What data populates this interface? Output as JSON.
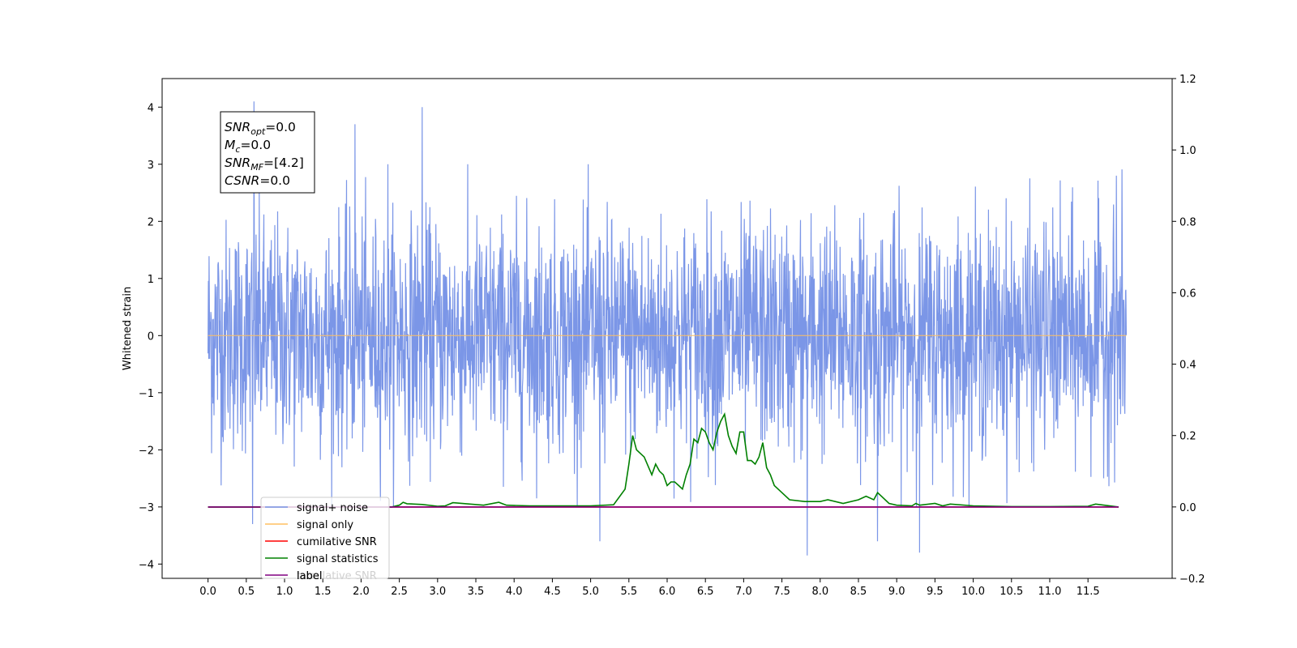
{
  "chart_data": {
    "type": "line",
    "ylabel": "Whitened strain",
    "xlim": [
      -0.6,
      12.6
    ],
    "ylim": [
      -4.25,
      4.5
    ],
    "y2lim": [
      -0.2,
      1.2
    ],
    "x_ticks": [
      0.0,
      0.5,
      1.0,
      1.5,
      2.0,
      2.5,
      3.0,
      3.5,
      4.0,
      4.5,
      5.0,
      5.5,
      6.0,
      6.5,
      7.0,
      7.5,
      8.0,
      8.5,
      9.0,
      9.5,
      10.0,
      10.5,
      11.0,
      11.5
    ],
    "x_tick_labels": [
      "0.0",
      "0.5",
      "1.0",
      "1.5",
      "2.0",
      "2.5",
      "3.0",
      "3.5",
      "4.0",
      "4.5",
      "5.0",
      "5.5",
      "6.0",
      "6.5",
      "7.0",
      "7.5",
      "8.0",
      "8.5",
      "9.0",
      "9.5",
      "10.0",
      "10.5",
      "11.0",
      "11.5"
    ],
    "y_ticks": [
      4,
      3,
      2,
      1,
      0,
      -1,
      -2,
      -3,
      -4
    ],
    "y_tick_labels": [
      "4",
      "3",
      "2",
      "1",
      "0",
      "−1",
      "−2",
      "−3",
      "−4"
    ],
    "y2_ticks": [
      1.2,
      1.0,
      0.8,
      0.6,
      0.4,
      0.2,
      0.0,
      -0.2
    ],
    "y2_tick_labels": [
      "1.2",
      "1.0",
      "0.8",
      "0.6",
      "0.4",
      "0.2",
      "0.0",
      "−0.2"
    ],
    "grid": false,
    "legend_position": "lower-left",
    "annotation": {
      "snr_opt": {
        "main": "SNR",
        "sub": "opt",
        "rest": "=0.0"
      },
      "mc": {
        "main": "M",
        "sub": "c",
        "rest": "=0.0"
      },
      "snr_mf": {
        "main": "SNR",
        "sub": "MF",
        "rest": "=[4.2]"
      },
      "csnr": {
        "main": "CSNR",
        "sub": "",
        "rest": "=0.0"
      }
    },
    "series": [
      {
        "name": "signal+ noise",
        "color": "#7b96e7",
        "axis": "left",
        "description_values": "dense noise between roughly -2.5 and 2.5 with spikes",
        "x_range": [
          0.0,
          12.0
        ],
        "peaks": [
          [
            0.6,
            4.1
          ],
          [
            2.8,
            4.0
          ],
          [
            1.92,
            3.7
          ],
          [
            2.35,
            3.0
          ],
          [
            7.83,
            -3.85
          ],
          [
            9.3,
            -3.8
          ],
          [
            5.12,
            -3.6
          ],
          [
            8.75,
            -3.6
          ],
          [
            0.58,
            -3.3
          ],
          [
            11.87,
            2.8
          ]
        ]
      },
      {
        "name": "signal only",
        "color": "#ffbf60",
        "axis": "left",
        "x": [
          0.0,
          12.0
        ],
        "y": [
          0.0,
          0.0
        ]
      },
      {
        "name": "cumilative SNR",
        "color": "#ff0000",
        "axis": "right",
        "x": [
          0.0,
          11.9
        ],
        "y": [
          0.0,
          0.0
        ]
      },
      {
        "name": "signal statistics",
        "color": "#008000",
        "axis": "right",
        "x": [
          0.0,
          2.4,
          2.5,
          2.55,
          2.6,
          2.8,
          3.0,
          3.1,
          3.2,
          3.6,
          3.8,
          3.9,
          4.2,
          4.5,
          5.0,
          5.3,
          5.45,
          5.5,
          5.55,
          5.6,
          5.65,
          5.7,
          5.8,
          5.85,
          5.9,
          5.95,
          6.0,
          6.05,
          6.1,
          6.15,
          6.2,
          6.25,
          6.3,
          6.35,
          6.4,
          6.45,
          6.5,
          6.55,
          6.6,
          6.65,
          6.7,
          6.75,
          6.8,
          6.85,
          6.9,
          6.95,
          7.0,
          7.05,
          7.1,
          7.15,
          7.2,
          7.25,
          7.3,
          7.35,
          7.4,
          7.5,
          7.6,
          7.8,
          8.0,
          8.1,
          8.3,
          8.5,
          8.6,
          8.7,
          8.75,
          8.8,
          8.9,
          9.0,
          9.2,
          9.25,
          9.3,
          9.5,
          9.6,
          9.7,
          10.0,
          10.5,
          11.0,
          11.5,
          11.6,
          11.9
        ],
        "y": [
          0.0,
          0.0,
          0.005,
          0.013,
          0.009,
          0.007,
          0.002,
          0.003,
          0.012,
          0.005,
          0.013,
          0.005,
          0.003,
          0.003,
          0.003,
          0.006,
          0.05,
          0.12,
          0.2,
          0.16,
          0.15,
          0.14,
          0.09,
          0.12,
          0.1,
          0.09,
          0.06,
          0.07,
          0.07,
          0.06,
          0.05,
          0.09,
          0.12,
          0.19,
          0.18,
          0.22,
          0.21,
          0.18,
          0.16,
          0.21,
          0.24,
          0.26,
          0.2,
          0.17,
          0.15,
          0.21,
          0.21,
          0.13,
          0.13,
          0.12,
          0.14,
          0.18,
          0.11,
          0.09,
          0.06,
          0.04,
          0.02,
          0.015,
          0.015,
          0.02,
          0.01,
          0.02,
          0.03,
          0.02,
          0.04,
          0.03,
          0.01,
          0.005,
          0.003,
          0.01,
          0.005,
          0.01,
          0.003,
          0.008,
          0.003,
          0.001,
          0.001,
          0.002,
          0.008,
          0.0
        ]
      },
      {
        "name": "label",
        "color": "#800080",
        "axis": "right",
        "x": [
          0.0,
          11.9
        ],
        "y": [
          0.0,
          0.0
        ]
      }
    ],
    "legend_overlay_text": "cumilative SNR"
  }
}
